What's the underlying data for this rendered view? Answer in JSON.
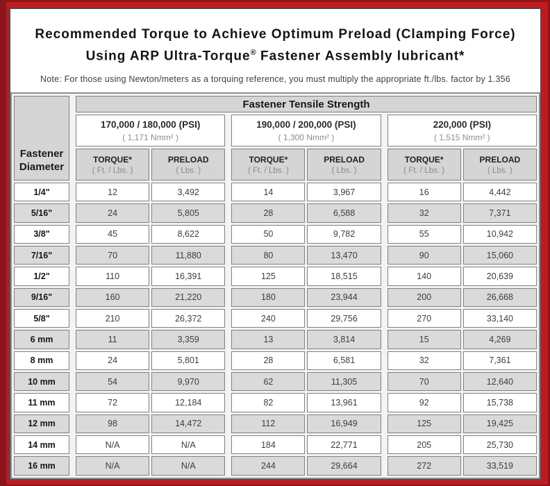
{
  "colors": {
    "frame_red": "#c2191f",
    "frame_dark_edge": "#8a151a",
    "header_gray": "#d5d5d5",
    "stripe_gray": "#dadada",
    "panel_border": "#4c4c4c"
  },
  "title": {
    "line1": "Recommended Torque to Achieve Optimum Preload (Clamping Force)",
    "line2_prefix": "Using ARP Ultra-Torque",
    "line2_reg": "®",
    "line2_suffix": " Fastener Assembly lubricant*",
    "note": "Note: For those using Newton/meters as a torquing reference, you must multiply the appropriate ft./lbs. factor by 1.356"
  },
  "table": {
    "corner_line1": "Fastener",
    "corner_line2": "Diameter",
    "tensile_header": "Fastener Tensile Strength",
    "strength_groups": [
      {
        "psi": "170,000 / 180,000 (PSI)",
        "nmm": "( 1,171 Nmm² )"
      },
      {
        "psi": "190,000 / 200,000 (PSI)",
        "nmm": "( 1,300 Nmm² )"
      },
      {
        "psi": "220,000 (PSI)",
        "nmm": "( 1,515 Nmm² )"
      }
    ],
    "col_headers": {
      "torque": "TORQUE*",
      "torque_sub": "( Ft. / Lbs. )",
      "preload": "PRELOAD",
      "preload_sub": "( Lbs. )"
    },
    "rows": [
      {
        "dia": "1/4\"",
        "values": [
          "12",
          "3,492",
          "14",
          "3,967",
          "16",
          "4,442"
        ]
      },
      {
        "dia": "5/16\"",
        "values": [
          "24",
          "5,805",
          "28",
          "6,588",
          "32",
          "7,371"
        ]
      },
      {
        "dia": "3/8\"",
        "values": [
          "45",
          "8,622",
          "50",
          "9,782",
          "55",
          "10,942"
        ]
      },
      {
        "dia": "7/16\"",
        "values": [
          "70",
          "11,880",
          "80",
          "13,470",
          "90",
          "15,060"
        ]
      },
      {
        "dia": "1/2\"",
        "values": [
          "110",
          "16,391",
          "125",
          "18,515",
          "140",
          "20,639"
        ]
      },
      {
        "dia": "9/16\"",
        "values": [
          "160",
          "21,220",
          "180",
          "23,944",
          "200",
          "26,668"
        ]
      },
      {
        "dia": "5/8\"",
        "values": [
          "210",
          "26,372",
          "240",
          "29,756",
          "270",
          "33,140"
        ]
      },
      {
        "dia": "6 mm",
        "values": [
          "11",
          "3,359",
          "13",
          "3,814",
          "15",
          "4,269"
        ]
      },
      {
        "dia": "8 mm",
        "values": [
          "24",
          "5,801",
          "28",
          "6,581",
          "32",
          "7,361"
        ]
      },
      {
        "dia": "10 mm",
        "values": [
          "54",
          "9,970",
          "62",
          "11,305",
          "70",
          "12,640"
        ]
      },
      {
        "dia": "11 mm",
        "values": [
          "72",
          "12,184",
          "82",
          "13,961",
          "92",
          "15,738"
        ]
      },
      {
        "dia": "12 mm",
        "values": [
          "98",
          "14,472",
          "112",
          "16,949",
          "125",
          "19,425"
        ]
      },
      {
        "dia": "14 mm",
        "values": [
          "N/A",
          "N/A",
          "184",
          "22,771",
          "205",
          "25,730"
        ]
      },
      {
        "dia": "16 mm",
        "values": [
          "N/A",
          "N/A",
          "244",
          "29,664",
          "272",
          "33,519"
        ]
      }
    ]
  }
}
